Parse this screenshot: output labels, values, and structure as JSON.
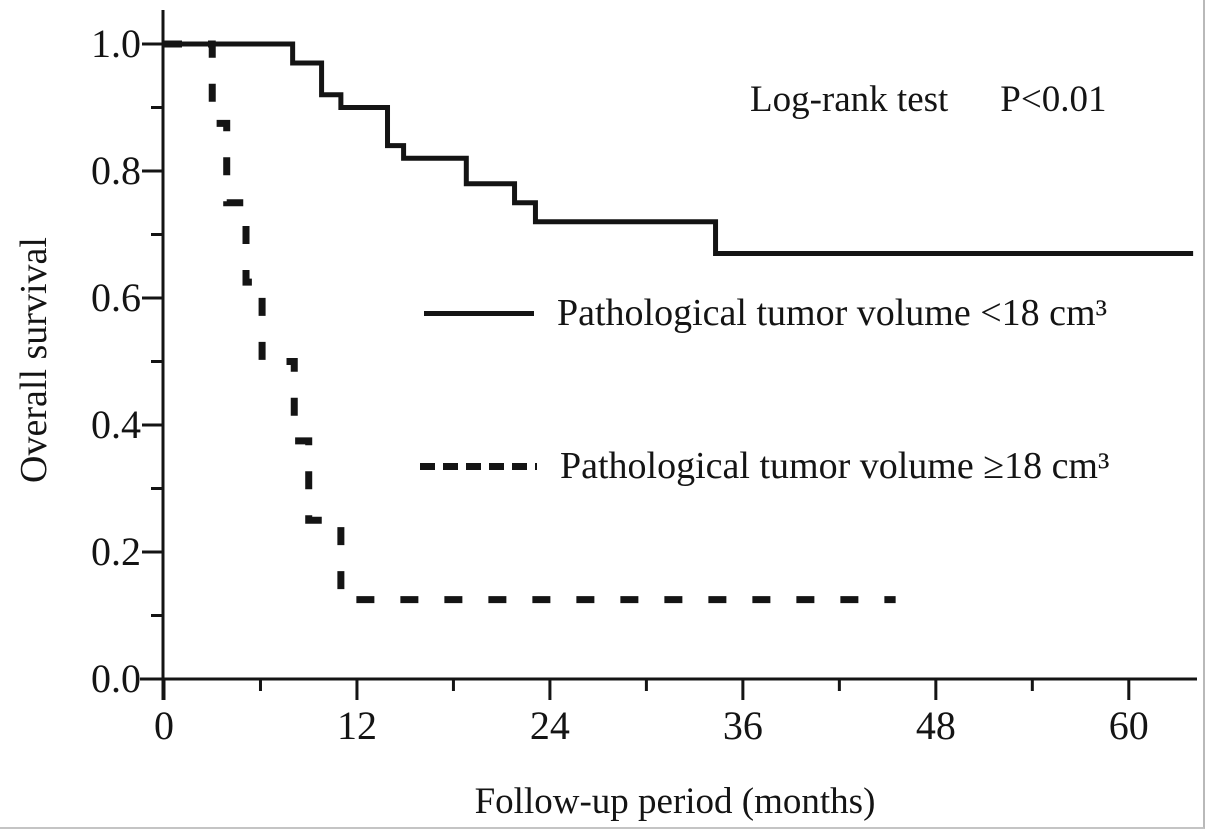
{
  "figure": {
    "background": "#ffffff",
    "ink": "#141414"
  },
  "annotation": {
    "test": "Log-rank test",
    "pvalue": "P<0.01"
  },
  "legend": [
    {
      "style": "solid",
      "label": "Pathological tumor volume <18 cm³"
    },
    {
      "style": "dashed",
      "label": "Pathological tumor volume ≥18 cm³"
    }
  ],
  "chart_data": {
    "type": "line",
    "subtype": "kaplan-meier-step",
    "title": "",
    "xlabel": "Follow-up period (months)",
    "ylabel": "Overall survival",
    "xlim": [
      0,
      64
    ],
    "ylim": [
      0.0,
      1.0
    ],
    "grid": false,
    "legend_position": "inside-center-left",
    "annotation": "Log-rank test   P<0.01",
    "x_ticks": [
      {
        "v": 0,
        "label": "0"
      },
      {
        "v": 12,
        "label": "12"
      },
      {
        "v": 24,
        "label": "24"
      },
      {
        "v": 36,
        "label": "36"
      },
      {
        "v": 48,
        "label": "48"
      },
      {
        "v": 60,
        "label": "60"
      }
    ],
    "x_minor_ticks": [
      6,
      18,
      30,
      42,
      54
    ],
    "y_ticks": [
      {
        "v": 0.0,
        "label": "0.0"
      },
      {
        "v": 0.2,
        "label": "0.2"
      },
      {
        "v": 0.4,
        "label": "0.4"
      },
      {
        "v": 0.6,
        "label": "0.6"
      },
      {
        "v": 0.8,
        "label": "0.8"
      },
      {
        "v": 1.0,
        "label": "1.0"
      }
    ],
    "y_minor_ticks": [
      0.1,
      0.3,
      0.5,
      0.7,
      0.9
    ],
    "series": [
      {
        "name": "Pathological tumor volume <18 cm³",
        "line": "solid",
        "start": [
          0,
          1.0
        ],
        "steps": [
          [
            8.0,
            0.97
          ],
          [
            9.8,
            0.92
          ],
          [
            11.0,
            0.9
          ],
          [
            13.9,
            0.84
          ],
          [
            14.9,
            0.82
          ],
          [
            18.8,
            0.78
          ],
          [
            21.8,
            0.75
          ],
          [
            23.1,
            0.72
          ],
          [
            34.3,
            0.67
          ]
        ],
        "end_time": 64
      },
      {
        "name": "Pathological tumor volume ≥18 cm³",
        "line": "dashed",
        "start": [
          0,
          1.0
        ],
        "steps": [
          [
            3.0,
            0.875
          ],
          [
            3.9,
            0.75
          ],
          [
            5.1,
            0.625
          ],
          [
            6.1,
            0.5
          ],
          [
            8.1,
            0.375
          ],
          [
            9.0,
            0.25
          ],
          [
            11.0,
            0.125
          ]
        ],
        "end_time": 45.5
      }
    ]
  }
}
